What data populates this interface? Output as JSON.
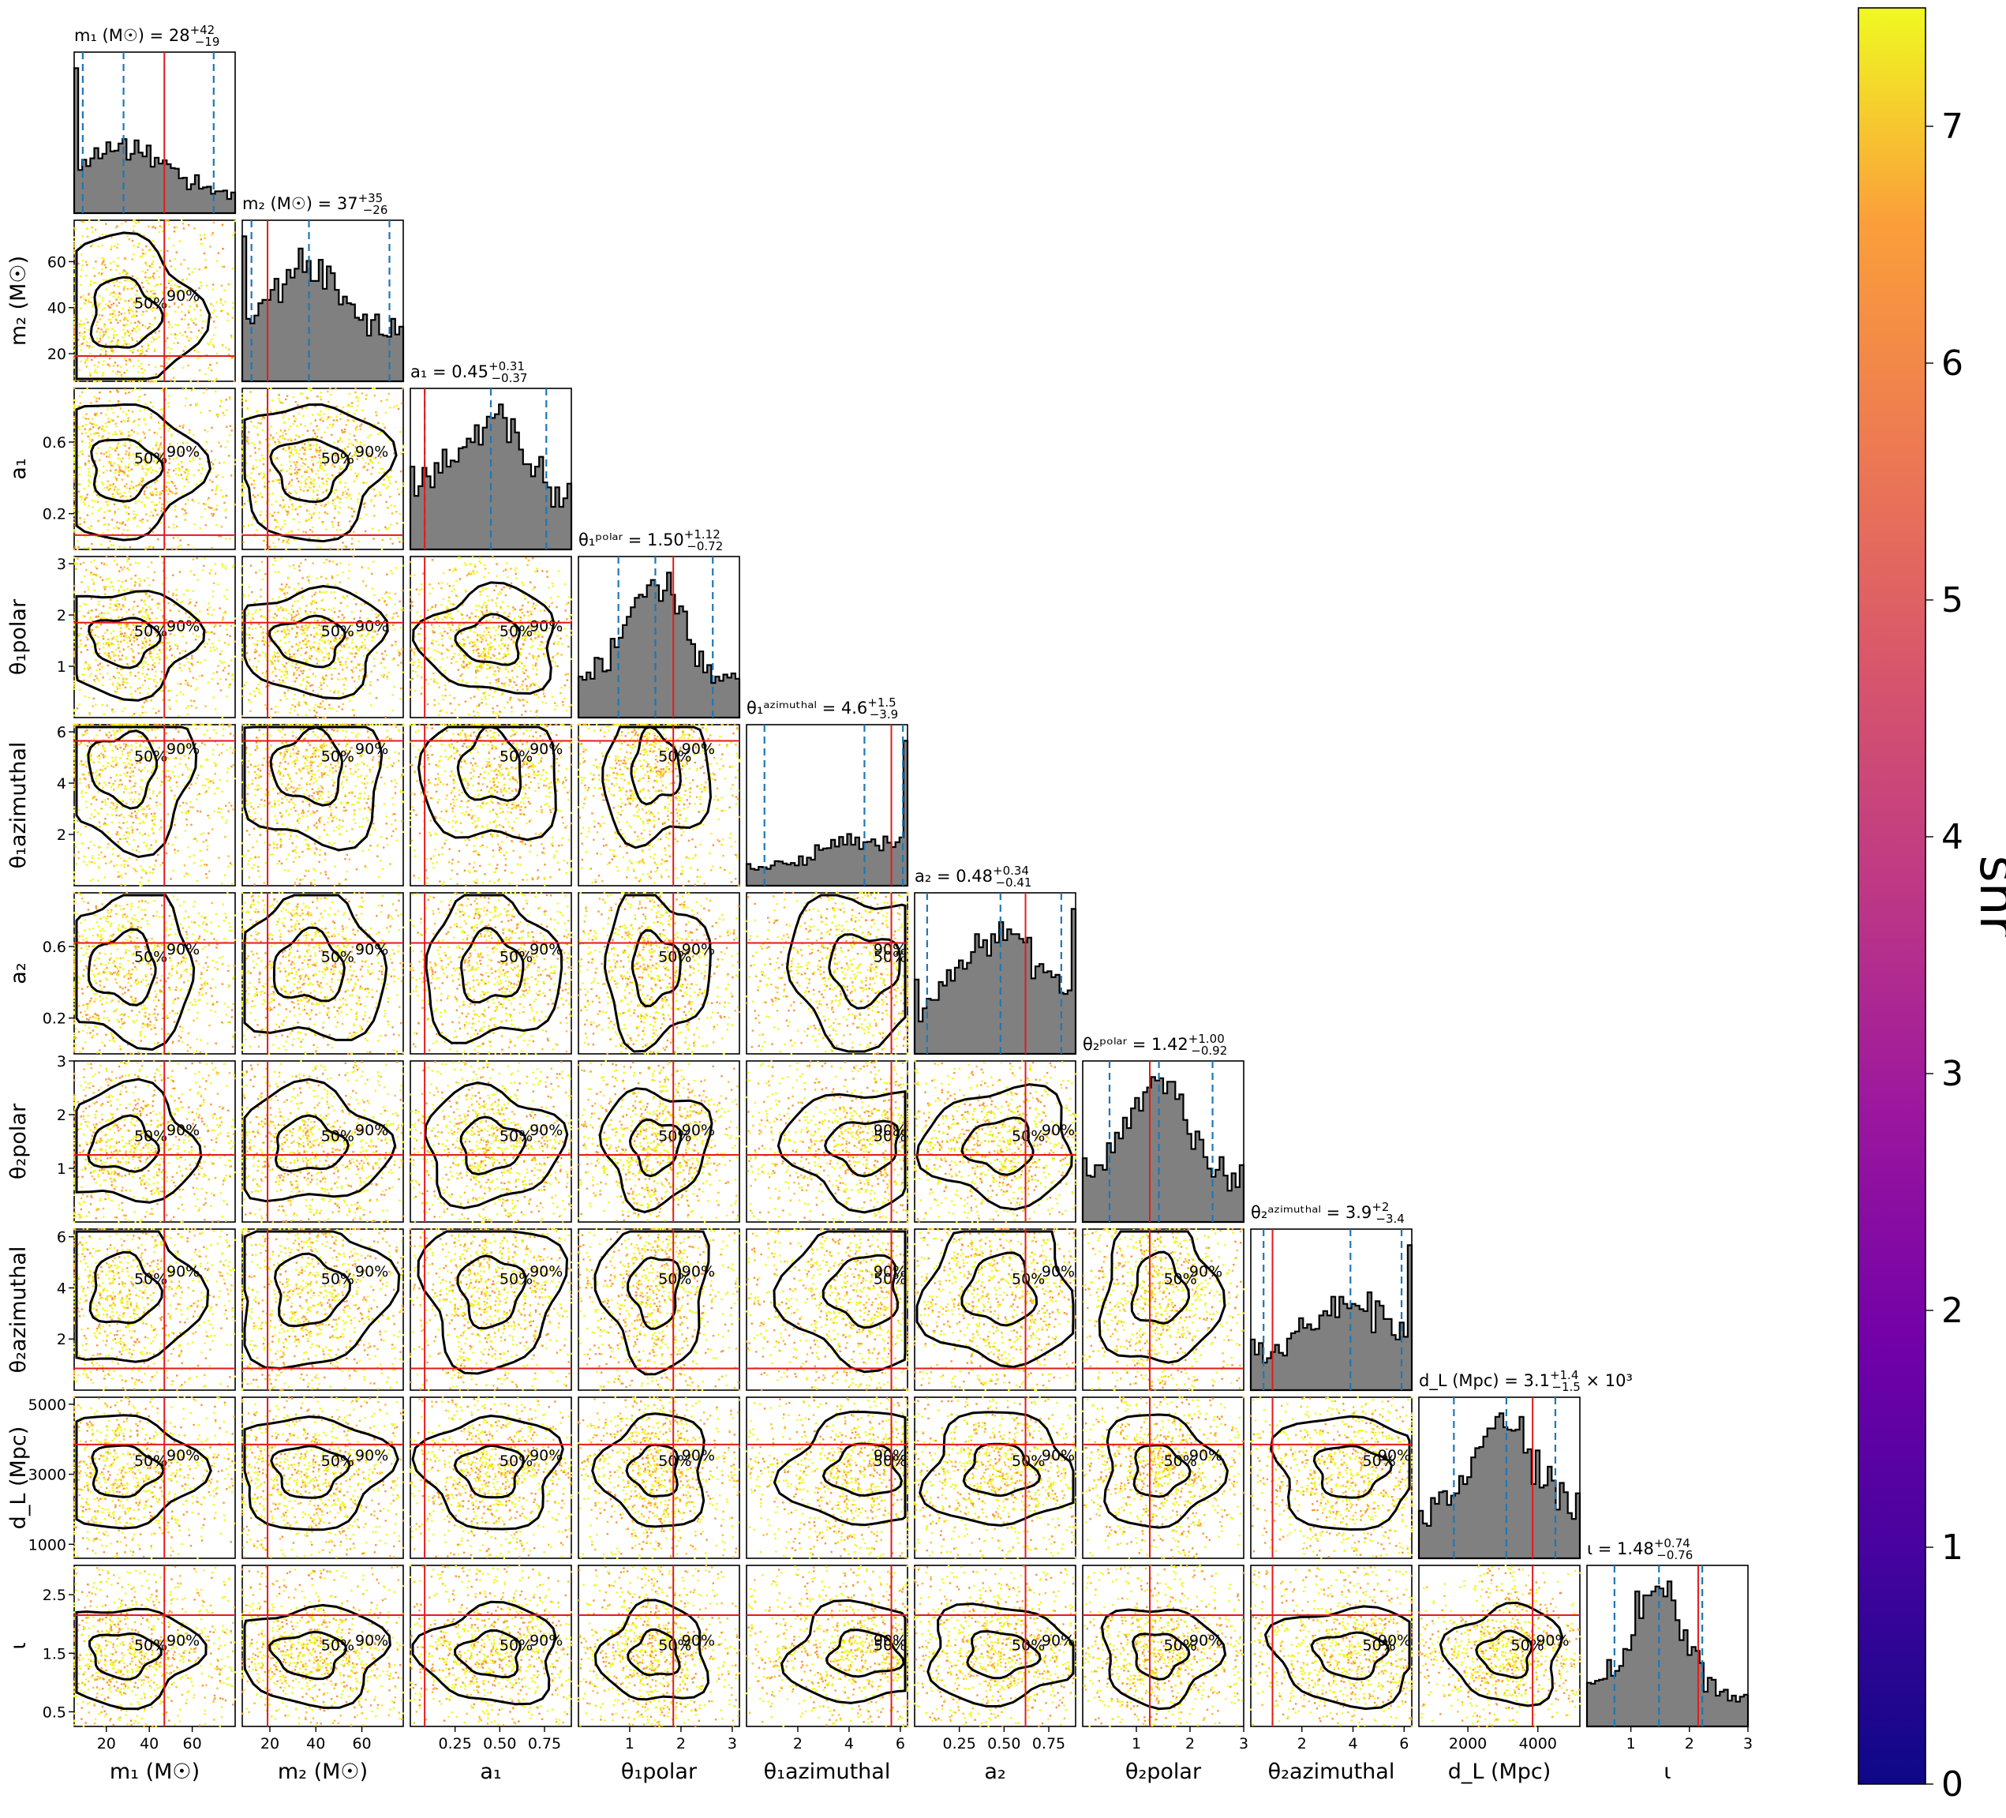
{
  "figure": {
    "type": "corner-plot",
    "colorbar": {
      "label": "snr",
      "ticks": [
        "0",
        "1",
        "2",
        "3",
        "4",
        "5",
        "6",
        "7"
      ],
      "range": [
        0,
        7.5
      ],
      "colormap": "plasma"
    },
    "colors": {
      "histogram_fill": "#808080",
      "quantile_line": "#1f77b4",
      "truth_line": "#e31a1c",
      "contour": "#000000",
      "scatter_low": "#f89540",
      "scatter_high": "#f0f921"
    },
    "contour_labels": [
      "50%",
      "90%"
    ]
  },
  "chart_data": {
    "type": "scatter",
    "parameters": [
      {
        "name": "m1",
        "axis_label": "m₁ (M☉)",
        "title": "m₁ (M☉) = 28+42−19",
        "title_main": "m₁ (M☉) = 28",
        "title_sup": "+42",
        "title_sub": "−19",
        "range": [
          5,
          80
        ],
        "ticks": [
          "20",
          "40",
          "60"
        ],
        "tick_values": [
          20,
          40,
          60
        ],
        "truth": 47,
        "median": 28,
        "q_low": 9,
        "q_high": 70
      },
      {
        "name": "m2",
        "axis_label": "m₂ (M☉)",
        "title": "m₂ (M☉) = 37+35−26",
        "title_main": "m₂ (M☉) = 37",
        "title_sup": "+35",
        "title_sub": "−26",
        "range": [
          8,
          78
        ],
        "ticks": [
          "20",
          "40",
          "60"
        ],
        "tick_values": [
          20,
          40,
          60
        ],
        "truth": 19,
        "median": 37,
        "q_low": 12,
        "q_high": 72
      },
      {
        "name": "a1",
        "axis_label": "a₁",
        "title": "a₁ = 0.45+0.31−0.37",
        "title_main": "a₁ = 0.45",
        "title_sup": "+0.31",
        "title_sub": "−0.37",
        "range": [
          0.0,
          0.9
        ],
        "ticks": [
          "0.2",
          "0.6"
        ],
        "tick_values": [
          0.2,
          0.6
        ],
        "ticks_bottom": [
          "0.25",
          "0.50",
          "0.75"
        ],
        "tick_values_bottom": [
          0.25,
          0.5,
          0.75
        ],
        "truth": 0.08,
        "median": 0.45,
        "q_low": 0.08,
        "q_high": 0.76
      },
      {
        "name": "theta1_polar",
        "axis_label": "θ₁polar",
        "title": "θ₁polar = 1.50+1.12−0.72",
        "title_main": "θ₁ᵖᵒˡᵃʳ = 1.50",
        "title_sup": "+1.12",
        "title_sub": "−0.72",
        "range": [
          0.0,
          3.14
        ],
        "ticks": [
          "1",
          "2",
          "3"
        ],
        "tick_values": [
          1,
          2,
          3
        ],
        "truth": 1.85,
        "median": 1.5,
        "q_low": 0.78,
        "q_high": 2.62
      },
      {
        "name": "theta1_azimuthal",
        "axis_label": "θ₁azimuthal",
        "title": "θ₁azimuthal = 4.6+1.5−3.9",
        "title_main": "θ₁ᵃᶻⁱᵐᵘᵗʰᵃˡ = 4.6",
        "title_sup": "+1.5",
        "title_sub": "−3.9",
        "range": [
          0.0,
          6.28
        ],
        "ticks": [
          "2",
          "4",
          "6"
        ],
        "tick_values": [
          2,
          4,
          6
        ],
        "truth": 5.65,
        "median": 4.6,
        "q_low": 0.7,
        "q_high": 6.1
      },
      {
        "name": "a2",
        "axis_label": "a₂",
        "title": "a₂ = 0.48+0.34−0.41",
        "title_main": "a₂ = 0.48",
        "title_sup": "+0.34",
        "title_sub": "−0.41",
        "range": [
          0.0,
          0.9
        ],
        "ticks": [
          "0.2",
          "0.6"
        ],
        "tick_values": [
          0.2,
          0.6
        ],
        "ticks_bottom": [
          "0.25",
          "0.50",
          "0.75"
        ],
        "tick_values_bottom": [
          0.25,
          0.5,
          0.75
        ],
        "truth": 0.62,
        "median": 0.48,
        "q_low": 0.07,
        "q_high": 0.82
      },
      {
        "name": "theta2_polar",
        "axis_label": "θ₂polar",
        "title": "θ₂polar = 1.42+1.00−0.92",
        "title_main": "θ₂ᵖᵒˡᵃʳ = 1.42",
        "title_sup": "+1.00",
        "title_sub": "−0.92",
        "range": [
          0.0,
          3.0
        ],
        "ticks": [
          "1",
          "2",
          "3"
        ],
        "tick_values": [
          1,
          2,
          3
        ],
        "truth": 1.25,
        "median": 1.42,
        "q_low": 0.5,
        "q_high": 2.42
      },
      {
        "name": "theta2_azimuthal",
        "axis_label": "θ₂azimuthal",
        "title": "θ₂azimuthal = 3.9+2−3.4",
        "title_main": "θ₂ᵃᶻⁱᵐᵘᵗʰᵃˡ = 3.9",
        "title_sup": "+2",
        "title_sub": "−3.4",
        "range": [
          0.0,
          6.3
        ],
        "ticks": [
          "2",
          "4",
          "6"
        ],
        "tick_values": [
          2,
          4,
          6
        ],
        "ticks_left": [
          "2",
          "4",
          "6"
        ],
        "truth": 0.85,
        "median": 3.9,
        "q_low": 0.5,
        "q_high": 5.9
      },
      {
        "name": "dL",
        "axis_label": "d_L (Mpc)",
        "title": "d_L (Mpc) = 3.1+1.4−1.5 × 10³",
        "title_main": "d_L (Mpc) = 3.1",
        "title_sup": "+1.4",
        "title_sub": "−1.5",
        "title_tail": " × 10³",
        "range": [
          600,
          5200
        ],
        "ticks": [
          "1000",
          "3000",
          "5000"
        ],
        "tick_values": [
          1000,
          3000,
          5000
        ],
        "ticks_bottom": [
          "2000",
          "4000"
        ],
        "tick_values_bottom": [
          2000,
          4000
        ],
        "truth": 3850,
        "median": 3100,
        "q_low": 1600,
        "q_high": 4500
      },
      {
        "name": "iota",
        "axis_label": "ι",
        "title": "ι = 1.48+0.74−0.76",
        "title_main": "ι = 1.48",
        "title_sup": "+0.74",
        "title_sub": "−0.76",
        "range": [
          0.25,
          3.0
        ],
        "ticks": [
          "0.5",
          "1.5",
          "2.5"
        ],
        "tick_values": [
          0.5,
          1.5,
          2.5
        ],
        "ticks_left_extra": [
          "1"
        ],
        "ticks_bottom": [
          "1",
          "2",
          "3"
        ],
        "tick_values_bottom": [
          1,
          2,
          3
        ],
        "truth": 2.15,
        "median": 1.48,
        "q_low": 0.72,
        "q_high": 2.22
      }
    ]
  }
}
